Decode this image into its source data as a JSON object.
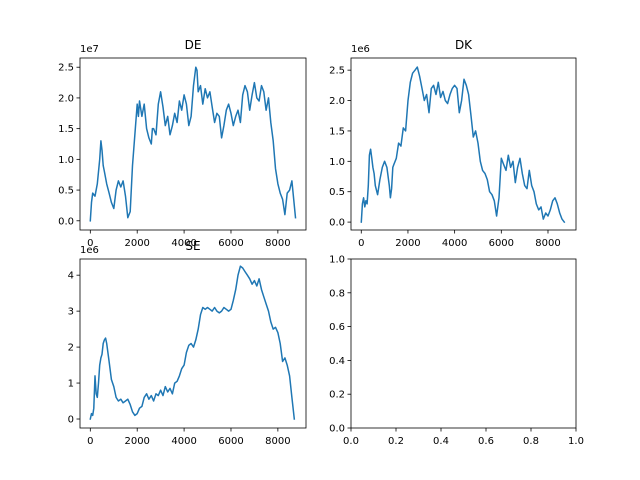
{
  "figure": {
    "background": "#ffffff",
    "line_color": "#1f77b4"
  },
  "chart_data": [
    {
      "type": "line",
      "title": "DE",
      "offset_label": "1e7",
      "xlim": [
        -440,
        9200
      ],
      "ylim": [
        -0.15,
        2.65
      ],
      "xticks": [
        0,
        2000,
        4000,
        6000,
        8000
      ],
      "xtick_labels": [
        "0",
        "2000",
        "4000",
        "6000",
        "8000"
      ],
      "yticks": [
        0.0,
        0.5,
        1.0,
        1.5,
        2.0,
        2.5
      ],
      "ytick_labels": [
        "0.0",
        "0.5",
        "1.0",
        "1.5",
        "2.0",
        "2.5"
      ],
      "series": [
        {
          "x": [
            0,
            50,
            100,
            200,
            300,
            400,
            450,
            500,
            550,
            600,
            700,
            800,
            900,
            1000,
            1100,
            1200,
            1300,
            1400,
            1500,
            1600,
            1650,
            1700,
            1800,
            2000,
            2050,
            2100,
            2200,
            2300,
            2400,
            2500,
            2600,
            2650,
            2700,
            2800,
            2900,
            3000,
            3100,
            3200,
            3300,
            3400,
            3500,
            3600,
            3700,
            3800,
            3900,
            4000,
            4100,
            4200,
            4300,
            4400,
            4500,
            4550,
            4600,
            4700,
            4800,
            4900,
            5000,
            5100,
            5200,
            5300,
            5400,
            5500,
            5600,
            5700,
            5800,
            5900,
            6000,
            6100,
            6200,
            6300,
            6400,
            6500,
            6600,
            6700,
            6800,
            6900,
            7000,
            7100,
            7200,
            7300,
            7400,
            7500,
            7600,
            7700,
            7800,
            7900,
            8000,
            8100,
            8200,
            8300,
            8400,
            8500,
            8600,
            8700,
            8750
          ],
          "y": [
            0.0,
            0.3,
            0.45,
            0.4,
            0.6,
            1.0,
            1.3,
            1.15,
            0.9,
            0.8,
            0.6,
            0.45,
            0.3,
            0.2,
            0.5,
            0.65,
            0.55,
            0.65,
            0.4,
            0.05,
            0.1,
            0.15,
            0.9,
            1.9,
            1.7,
            1.95,
            1.7,
            1.9,
            1.5,
            1.35,
            1.25,
            1.5,
            1.5,
            1.4,
            1.9,
            2.1,
            1.85,
            1.55,
            1.7,
            1.4,
            1.55,
            1.75,
            1.6,
            1.95,
            1.8,
            2.05,
            1.9,
            1.55,
            1.7,
            2.2,
            2.5,
            2.45,
            2.1,
            2.2,
            1.9,
            2.15,
            2.0,
            2.1,
            1.85,
            1.6,
            1.75,
            1.7,
            1.35,
            1.55,
            1.8,
            1.9,
            1.75,
            1.55,
            1.7,
            1.8,
            1.6,
            2.05,
            2.2,
            2.1,
            1.8,
            2.05,
            2.25,
            2.0,
            1.95,
            2.2,
            2.1,
            1.8,
            2.0,
            1.6,
            1.3,
            0.85,
            0.6,
            0.45,
            0.35,
            0.1,
            0.45,
            0.5,
            0.65,
            0.25,
            0.05
          ]
        }
      ]
    },
    {
      "type": "line",
      "title": "DK",
      "offset_label": "1e6",
      "xlim": [
        -440,
        9200
      ],
      "ylim": [
        -0.13,
        2.7
      ],
      "xticks": [
        0,
        2000,
        4000,
        6000,
        8000
      ],
      "xtick_labels": [
        "0",
        "2000",
        "4000",
        "6000",
        "8000"
      ],
      "yticks": [
        0.0,
        0.5,
        1.0,
        1.5,
        2.0,
        2.5
      ],
      "ytick_labels": [
        "0.0",
        "0.5",
        "1.0",
        "1.5",
        "2.0",
        "2.5"
      ],
      "series": [
        {
          "x": [
            0,
            50,
            100,
            150,
            200,
            250,
            300,
            350,
            400,
            450,
            500,
            550,
            600,
            700,
            800,
            900,
            1000,
            1100,
            1200,
            1250,
            1300,
            1350,
            1400,
            1500,
            1600,
            1700,
            1800,
            1900,
            2000,
            2100,
            2200,
            2300,
            2400,
            2500,
            2600,
            2700,
            2800,
            2900,
            3000,
            3100,
            3200,
            3300,
            3400,
            3500,
            3600,
            3700,
            3800,
            3900,
            4000,
            4100,
            4200,
            4300,
            4400,
            4500,
            4600,
            4700,
            4800,
            4900,
            5000,
            5100,
            5200,
            5300,
            5400,
            5500,
            5600,
            5700,
            5800,
            5900,
            6000,
            6100,
            6200,
            6300,
            6400,
            6500,
            6600,
            6700,
            6800,
            6900,
            7000,
            7100,
            7200,
            7300,
            7400,
            7500,
            7600,
            7700,
            7800,
            7900,
            8000,
            8100,
            8200,
            8300,
            8400,
            8500,
            8600,
            8700
          ],
          "y": [
            0.0,
            0.3,
            0.4,
            0.25,
            0.35,
            0.3,
            0.6,
            1.1,
            1.2,
            1.05,
            0.9,
            0.8,
            0.6,
            0.45,
            0.7,
            0.9,
            1.0,
            0.9,
            0.6,
            0.4,
            0.55,
            0.9,
            0.95,
            1.05,
            1.3,
            1.25,
            1.55,
            1.5,
            2.0,
            2.3,
            2.45,
            2.5,
            2.55,
            2.4,
            2.2,
            2.0,
            2.1,
            1.8,
            2.2,
            2.25,
            2.1,
            2.3,
            2.05,
            2.15,
            2.0,
            1.95,
            2.1,
            2.2,
            2.25,
            2.2,
            1.8,
            2.0,
            2.35,
            2.25,
            2.1,
            1.75,
            1.4,
            1.5,
            1.3,
            1.0,
            0.85,
            0.8,
            0.7,
            0.5,
            0.45,
            0.35,
            0.1,
            0.4,
            1.05,
            0.95,
            0.85,
            1.1,
            0.9,
            1.0,
            0.65,
            0.9,
            1.05,
            0.8,
            0.6,
            0.55,
            0.85,
            0.6,
            0.5,
            0.3,
            0.2,
            0.25,
            0.05,
            0.15,
            0.1,
            0.2,
            0.35,
            0.4,
            0.3,
            0.15,
            0.05,
            0.0
          ]
        }
      ]
    },
    {
      "type": "line",
      "title": "SE",
      "offset_label": "1e6",
      "xlim": [
        -440,
        9200
      ],
      "ylim": [
        -0.25,
        4.45
      ],
      "xticks": [
        0,
        2000,
        4000,
        6000,
        8000
      ],
      "xtick_labels": [
        "0",
        "2000",
        "4000",
        "6000",
        "8000"
      ],
      "yticks": [
        0,
        1,
        2,
        3,
        4
      ],
      "ytick_labels": [
        "0",
        "1",
        "2",
        "3",
        "4"
      ],
      "series": [
        {
          "x": [
            0,
            50,
            100,
            150,
            200,
            250,
            300,
            350,
            400,
            450,
            500,
            550,
            600,
            650,
            700,
            800,
            900,
            1000,
            1100,
            1200,
            1300,
            1400,
            1500,
            1600,
            1700,
            1800,
            1900,
            2000,
            2100,
            2200,
            2300,
            2400,
            2500,
            2600,
            2700,
            2800,
            2900,
            3000,
            3100,
            3200,
            3300,
            3400,
            3500,
            3600,
            3700,
            3800,
            3900,
            4000,
            4100,
            4200,
            4300,
            4400,
            4500,
            4600,
            4700,
            4800,
            4900,
            5000,
            5100,
            5200,
            5300,
            5400,
            5500,
            5600,
            5700,
            5800,
            5900,
            6000,
            6100,
            6200,
            6300,
            6400,
            6500,
            6600,
            6700,
            6800,
            6900,
            7000,
            7100,
            7200,
            7300,
            7400,
            7500,
            7600,
            7700,
            7800,
            7900,
            8000,
            8100,
            8200,
            8300,
            8400,
            8500,
            8600,
            8700
          ],
          "y": [
            0.0,
            0.15,
            0.1,
            0.3,
            1.2,
            0.7,
            0.6,
            1.0,
            1.5,
            1.7,
            1.8,
            2.1,
            2.2,
            2.25,
            2.1,
            1.6,
            1.1,
            0.9,
            0.6,
            0.5,
            0.55,
            0.45,
            0.5,
            0.55,
            0.4,
            0.2,
            0.1,
            0.15,
            0.3,
            0.35,
            0.6,
            0.7,
            0.55,
            0.65,
            0.5,
            0.7,
            0.65,
            0.8,
            0.65,
            0.9,
            0.75,
            0.85,
            0.7,
            1.0,
            1.05,
            1.2,
            1.4,
            1.5,
            1.85,
            2.05,
            2.1,
            2.0,
            2.2,
            2.5,
            2.9,
            3.1,
            3.05,
            3.1,
            3.05,
            3.0,
            3.1,
            3.0,
            2.95,
            3.0,
            3.1,
            3.05,
            3.0,
            3.05,
            3.3,
            3.6,
            4.0,
            4.25,
            4.2,
            4.1,
            4.0,
            3.9,
            3.75,
            3.85,
            3.7,
            3.9,
            3.6,
            3.4,
            3.2,
            3.0,
            2.7,
            2.5,
            2.55,
            2.4,
            2.1,
            1.6,
            1.7,
            1.5,
            1.2,
            0.6,
            0.0
          ]
        }
      ]
    },
    {
      "type": "line",
      "title": "",
      "offset_label": "",
      "xlim": [
        0,
        1
      ],
      "ylim": [
        0,
        1
      ],
      "xticks": [
        0,
        0.2,
        0.4,
        0.6,
        0.8,
        1.0
      ],
      "xtick_labels": [
        "0.0",
        "0.2",
        "0.4",
        "0.6",
        "0.8",
        "1.0"
      ],
      "yticks": [
        0,
        0.2,
        0.4,
        0.6,
        0.8,
        1.0
      ],
      "ytick_labels": [
        "0.0",
        "0.2",
        "0.4",
        "0.6",
        "0.8",
        "1.0"
      ],
      "series": []
    }
  ]
}
